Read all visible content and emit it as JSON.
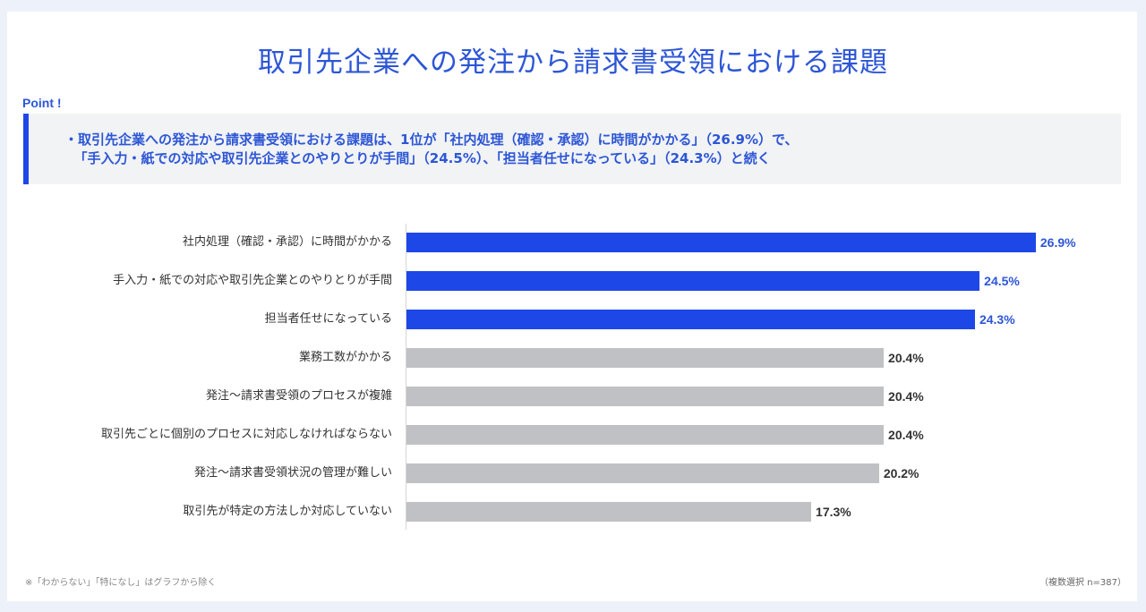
{
  "title": "取引先企業への発注から請求書受領における課題",
  "point": {
    "label": "Point !",
    "line1": "・取引先企業への発注から請求書受領における課題は、1位が「社内処理（確認・承認）に時間がかかる」（26.9%）で、",
    "line2": "「手入力・紙での対応や取引先企業とのやりとりが手間」（24.5%）、「担当者任せになっている」（24.3%）と続く"
  },
  "colors": {
    "highlight": "#1e47e8",
    "other": "#bfc1c4",
    "highlight_label": "#2d56d6",
    "other_label": "#333333"
  },
  "chart_data": {
    "type": "bar",
    "orientation": "horizontal",
    "title": "取引先企業への発注から請求書受領における課題",
    "categories": [
      "社内処理（確認・承認）に時間がかかる",
      "手入力・紙での対応や取引先企業とのやりとりが手間",
      "担当者任せになっている",
      "業務工数がかかる",
      "発注～請求書受領のプロセスが複雑",
      "取引先ごとに個別のプロセスに対応しなければならない",
      "発注～請求書受領状況の管理が難しい",
      "取引先が特定の方法しか対応していない"
    ],
    "values": [
      26.9,
      24.5,
      24.3,
      20.4,
      20.4,
      20.4,
      20.2,
      17.3
    ],
    "labels": [
      "26.9%",
      "24.5%",
      "24.3%",
      "20.4%",
      "20.4%",
      "20.4%",
      "20.2%",
      "17.3%"
    ],
    "highlighted": [
      true,
      true,
      true,
      false,
      false,
      false,
      false,
      false
    ],
    "xlabel": "",
    "ylabel": "",
    "unit": "%",
    "grid": false,
    "legend": null
  },
  "footnote": "※「わからない」「特になし」はグラフから除く",
  "sample_note": "（複数選択 n=387）"
}
